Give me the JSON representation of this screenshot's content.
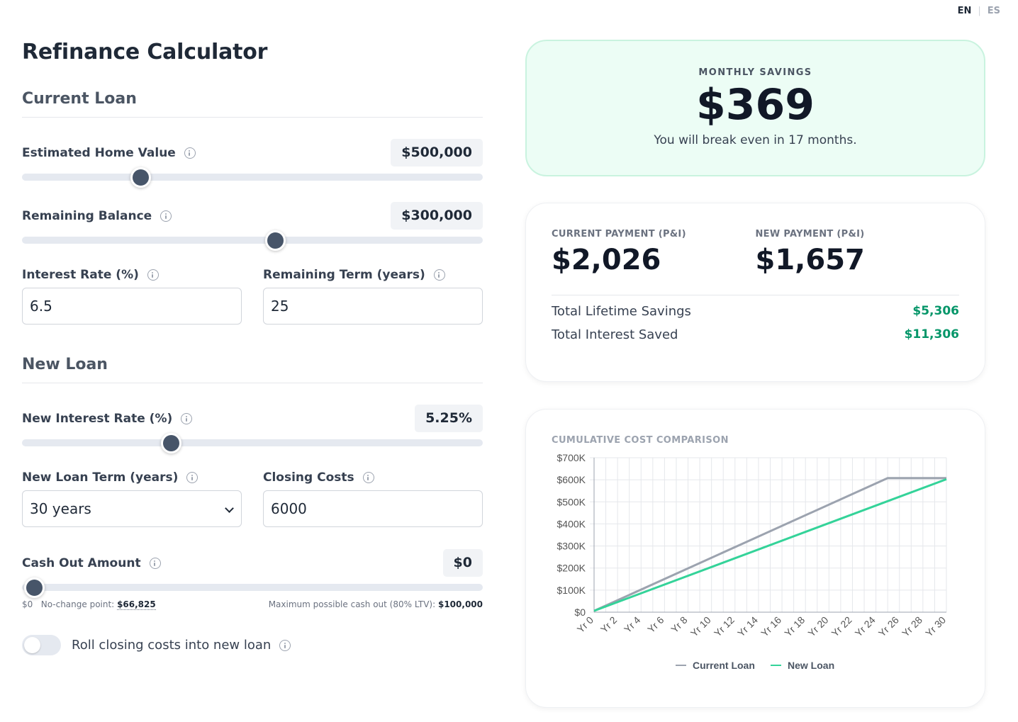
{
  "lang": {
    "en": "EN",
    "es": "ES"
  },
  "title": "Refinance Calculator",
  "current_loan": {
    "heading": "Current Loan",
    "home_value": {
      "label": "Estimated Home Value",
      "value": "$500,000",
      "fraction": 0.245
    },
    "balance": {
      "label": "Remaining Balance",
      "value": "$300,000",
      "fraction": 0.553
    },
    "interest_rate": {
      "label": "Interest Rate (%)",
      "value": "6.5"
    },
    "remaining_term": {
      "label": "Remaining Term (years)",
      "value": "25"
    }
  },
  "new_loan": {
    "heading": "New Loan",
    "interest_rate": {
      "label": "New Interest Rate (%)",
      "value": "5.25%",
      "fraction": 0.314
    },
    "term": {
      "label": "New Loan Term (years)",
      "value": "30 years"
    },
    "closing_costs": {
      "label": "Closing Costs",
      "value": "6000"
    },
    "cash_out": {
      "label": "Cash Out Amount",
      "value": "$0",
      "fraction": 0.0,
      "min_label": "$0",
      "no_change_label": "No-change point:",
      "no_change_value": "$66,825",
      "max_label": "Maximum possible cash out (80% LTV):",
      "max_value": "$100,000"
    },
    "roll_label": "Roll closing costs into new loan"
  },
  "savings": {
    "eyebrow": "MONTHLY SAVINGS",
    "value": "$369",
    "break_even": "You will break even in 17 months."
  },
  "payments": {
    "current_label": "CURRENT PAYMENT (P&I)",
    "current_value": "$2,026",
    "new_label": "NEW PAYMENT (P&I)",
    "new_value": "$1,657",
    "lifetime_label": "Total Lifetime Savings",
    "lifetime_value": "$5,306",
    "interest_label": "Total Interest Saved",
    "interest_value": "$11,306"
  },
  "colors": {
    "current": "#9ca3af",
    "new": "#34d399",
    "accent_green": "#059669"
  },
  "chart_data": {
    "type": "line",
    "title": "CUMULATIVE COST COMPARISON",
    "x_ticks": [
      "Yr 0",
      "Yr 2",
      "Yr 4",
      "Yr 6",
      "Yr 8",
      "Yr 10",
      "Yr 12",
      "Yr 14",
      "Yr 16",
      "Yr 18",
      "Yr 20",
      "Yr 22",
      "Yr 24",
      "Yr 26",
      "Yr 28",
      "Yr 30"
    ],
    "y_ticks": [
      "$0",
      "$100K",
      "$200K",
      "$300K",
      "$400K",
      "$500K",
      "$600K",
      "$700K"
    ],
    "ylim": [
      0,
      700000
    ],
    "xlim": [
      0,
      30
    ],
    "grid": true,
    "legend": "bottom",
    "series": [
      {
        "name": "Current Loan",
        "color": "#9ca3af",
        "x": [
          0,
          25,
          30
        ],
        "y": [
          6000,
          607800,
          607800
        ]
      },
      {
        "name": "New Loan",
        "color": "#34d399",
        "x": [
          0,
          30
        ],
        "y": [
          6000,
          602500
        ]
      }
    ]
  }
}
